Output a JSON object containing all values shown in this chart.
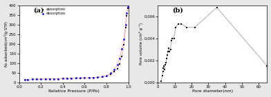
{
  "plot_a": {
    "title": "(a)",
    "xlabel": "Relative Pressure (P/Po)",
    "ylabel": "N₂ adsorbed(cm³/g STP)",
    "xlim": [
      0.0,
      1.0
    ],
    "ylim": [
      0,
      400
    ],
    "yticks": [
      0,
      50,
      100,
      150,
      200,
      250,
      300,
      350,
      400
    ],
    "xticks": [
      0.0,
      0.2,
      0.4,
      0.6,
      0.8,
      1.0
    ],
    "absorption_x": [
      0.05,
      0.08,
      0.12,
      0.16,
      0.2,
      0.24,
      0.28,
      0.32,
      0.36,
      0.4,
      0.44,
      0.48,
      0.52,
      0.56,
      0.6,
      0.64,
      0.68,
      0.72,
      0.76,
      0.8,
      0.84,
      0.87,
      0.9,
      0.92,
      0.94,
      0.96,
      0.975,
      0.985,
      0.993
    ],
    "absorption_y": [
      14,
      15,
      16,
      17,
      17,
      18,
      18,
      19,
      19,
      20,
      20,
      21,
      22,
      22,
      23,
      24,
      25,
      26,
      28,
      32,
      42,
      55,
      72,
      95,
      135,
      195,
      285,
      345,
      385
    ],
    "desorption_x": [
      0.05,
      0.08,
      0.12,
      0.16,
      0.2,
      0.24,
      0.28,
      0.32,
      0.36,
      0.4,
      0.44,
      0.48,
      0.52,
      0.56,
      0.6,
      0.64,
      0.68,
      0.72,
      0.76,
      0.8,
      0.84,
      0.87,
      0.9,
      0.92,
      0.94,
      0.96,
      0.975,
      0.985,
      0.993
    ],
    "desorption_y": [
      14,
      15,
      16,
      17,
      17,
      18,
      18,
      19,
      19,
      20,
      21,
      22,
      23,
      23,
      24,
      25,
      26,
      27,
      30,
      35,
      50,
      68,
      92,
      125,
      175,
      225,
      300,
      358,
      390
    ],
    "absorption_color": "#111111",
    "desorption_color": "#1111ee",
    "line_color": "#f0b0b0"
  },
  "plot_b": {
    "title": "(b)",
    "xlabel": "Pore diameter(nm)",
    "ylabel": "Pore volume (cm³ g⁻¹)",
    "xlim": [
      0,
      65
    ],
    "ylim": [
      0,
      0.007
    ],
    "xticks": [
      0,
      10,
      20,
      30,
      40,
      50,
      60
    ],
    "yticks": [
      0.0,
      0.002,
      0.004,
      0.006
    ],
    "pore_x": [
      2.0,
      2.5,
      3.0,
      3.3,
      3.6,
      4.0,
      4.4,
      4.8,
      5.2,
      5.6,
      6.0,
      6.5,
      7.0,
      7.5,
      8.0,
      8.5,
      9.5,
      10.5,
      12.0,
      14.0,
      17.0,
      22.0,
      35.0,
      65.0
    ],
    "pore_y": [
      0.0001,
      0.0006,
      0.001,
      0.0013,
      0.0015,
      0.0012,
      0.0016,
      0.0018,
      0.0022,
      0.0025,
      0.0028,
      0.0031,
      0.0028,
      0.003,
      0.0038,
      0.004,
      0.004,
      0.005,
      0.0053,
      0.0053,
      0.005,
      0.005,
      0.0068,
      0.0015
    ],
    "marker_color": "#111111",
    "line_color": "#aaaaaa"
  },
  "background_color": "#ffffff",
  "fig_bg_color": "#e8e8e8",
  "figure_width": 3.92,
  "figure_height": 1.41,
  "dpi": 100
}
